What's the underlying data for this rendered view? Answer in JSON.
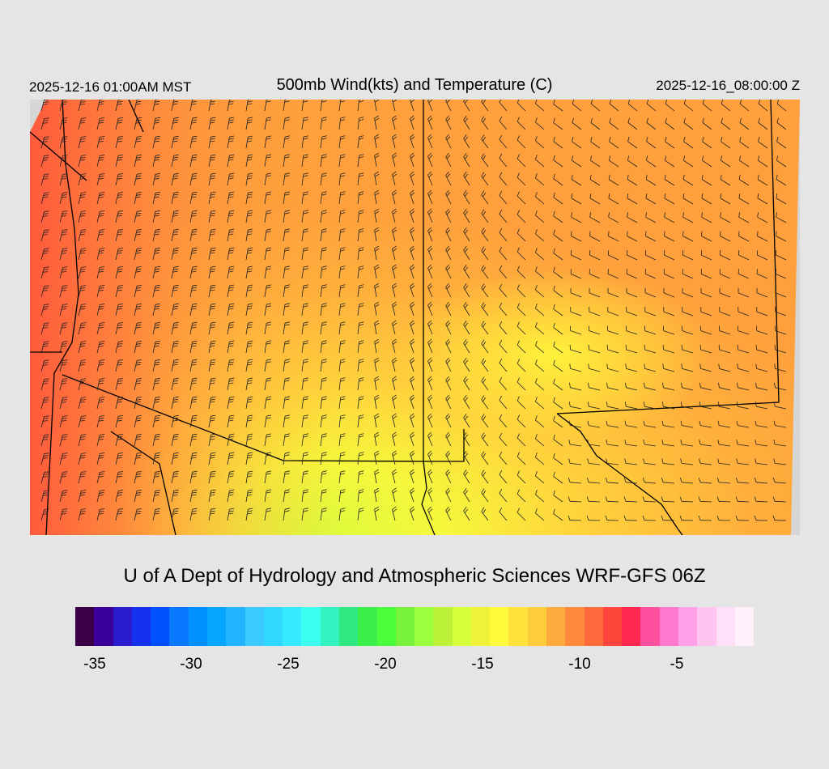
{
  "header": {
    "local_time": "2025-12-16 01:00AM MST",
    "title": "500mb Wind(kts) and Temperature (C)",
    "valid_time": "2025-12-16_08:00:00 Z"
  },
  "footer": {
    "credit": "U of A Dept of Hydrology and Atmospheric Sciences WRF-GFS 06Z"
  },
  "colorbar": {
    "colors": [
      "#3a0046",
      "#3a0099",
      "#2a1ccc",
      "#1432ee",
      "#0050ff",
      "#0a78ff",
      "#0090ff",
      "#06a6ff",
      "#22b4ff",
      "#3ccaff",
      "#30d8ff",
      "#38eaff",
      "#3cfff0",
      "#32f2c0",
      "#2ee880",
      "#3cf04a",
      "#4aff3a",
      "#78f23a",
      "#9aff3c",
      "#bcf23a",
      "#d6ff3c",
      "#f0f23a",
      "#fffa3c",
      "#ffe23c",
      "#ffcc3c",
      "#ffaa3c",
      "#ff8a3c",
      "#ff6a3c",
      "#ff463c",
      "#ff2850",
      "#ff50a0",
      "#ff78d0",
      "#ffa0e8",
      "#ffc4f0",
      "#ffe0f8",
      "#fff0fc"
    ],
    "ticks": [
      "-35",
      "-30",
      "-25",
      "-20",
      "-15",
      "-10",
      "-5"
    ]
  },
  "colors": {
    "background": "#e5e5e5",
    "off_domain": "#d6d6d6"
  }
}
